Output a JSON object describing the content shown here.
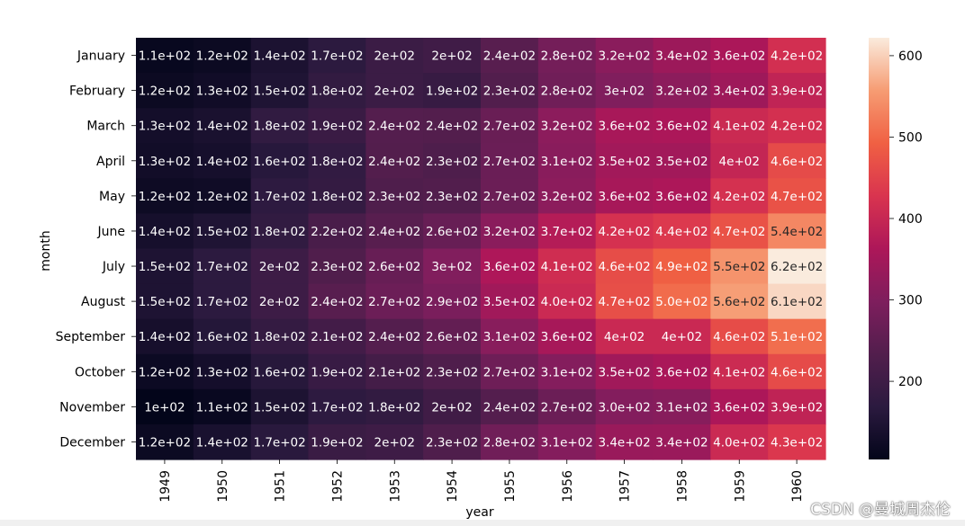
{
  "chart_data": {
    "type": "heatmap",
    "title": "",
    "xlabel": "year",
    "ylabel": "month",
    "x": [
      "1949",
      "1950",
      "1951",
      "1952",
      "1953",
      "1954",
      "1955",
      "1956",
      "1957",
      "1958",
      "1959",
      "1960"
    ],
    "y": [
      "January",
      "February",
      "March",
      "April",
      "May",
      "June",
      "July",
      "August",
      "September",
      "October",
      "November",
      "December"
    ],
    "values": [
      [
        112,
        118,
        145,
        171,
        196,
        204,
        242,
        284,
        315,
        340,
        360,
        417
      ],
      [
        118,
        126,
        150,
        180,
        196,
        188,
        233,
        277,
        301,
        318,
        342,
        391
      ],
      [
        132,
        141,
        178,
        193,
        236,
        235,
        267,
        317,
        356,
        362,
        406,
        419
      ],
      [
        129,
        135,
        163,
        181,
        235,
        227,
        269,
        313,
        348,
        348,
        396,
        461
      ],
      [
        121,
        125,
        172,
        183,
        229,
        234,
        270,
        318,
        355,
        363,
        420,
        472
      ],
      [
        135,
        149,
        178,
        218,
        243,
        264,
        315,
        374,
        422,
        435,
        472,
        535
      ],
      [
        148,
        170,
        199,
        230,
        264,
        302,
        364,
        413,
        465,
        491,
        548,
        622
      ],
      [
        148,
        170,
        199,
        242,
        272,
        293,
        347,
        405,
        467,
        505,
        559,
        606
      ],
      [
        136,
        158,
        184,
        209,
        237,
        259,
        312,
        355,
        404,
        404,
        463,
        508
      ],
      [
        119,
        133,
        162,
        191,
        211,
        229,
        274,
        306,
        347,
        359,
        407,
        461
      ],
      [
        104,
        114,
        146,
        172,
        180,
        203,
        237,
        271,
        305,
        310,
        362,
        390
      ],
      [
        118,
        140,
        166,
        194,
        201,
        229,
        278,
        306,
        336,
        337,
        405,
        432
      ]
    ],
    "annotations": [
      [
        "1.1e+02",
        "1.2e+02",
        "1.4e+02",
        "1.7e+02",
        "2e+02",
        "2e+02",
        "2.4e+02",
        "2.8e+02",
        "3.2e+02",
        "3.4e+02",
        "3.6e+02",
        "4.2e+02"
      ],
      [
        "1.2e+02",
        "1.3e+02",
        "1.5e+02",
        "1.8e+02",
        "2e+02",
        "1.9e+02",
        "2.3e+02",
        "2.8e+02",
        "3e+02",
        "3.2e+02",
        "3.4e+02",
        "3.9e+02"
      ],
      [
        "1.3e+02",
        "1.4e+02",
        "1.8e+02",
        "1.9e+02",
        "2.4e+02",
        "2.4e+02",
        "2.7e+02",
        "3.2e+02",
        "3.6e+02",
        "3.6e+02",
        "4.1e+02",
        "4.2e+02"
      ],
      [
        "1.3e+02",
        "1.4e+02",
        "1.6e+02",
        "1.8e+02",
        "2.4e+02",
        "2.3e+02",
        "2.7e+02",
        "3.1e+02",
        "3.5e+02",
        "3.5e+02",
        "4e+02",
        "4.6e+02"
      ],
      [
        "1.2e+02",
        "1.2e+02",
        "1.7e+02",
        "1.8e+02",
        "2.3e+02",
        "2.3e+02",
        "2.7e+02",
        "3.2e+02",
        "3.6e+02",
        "3.6e+02",
        "4.2e+02",
        "4.7e+02"
      ],
      [
        "1.4e+02",
        "1.5e+02",
        "1.8e+02",
        "2.2e+02",
        "2.4e+02",
        "2.6e+02",
        "3.2e+02",
        "3.7e+02",
        "4.2e+02",
        "4.4e+02",
        "4.7e+02",
        "5.4e+02"
      ],
      [
        "1.5e+02",
        "1.7e+02",
        "2e+02",
        "2.3e+02",
        "2.6e+02",
        "3e+02",
        "3.6e+02",
        "4.1e+02",
        "4.6e+02",
        "4.9e+02",
        "5.5e+02",
        "6.2e+02"
      ],
      [
        "1.5e+02",
        "1.7e+02",
        "2e+02",
        "2.4e+02",
        "2.7e+02",
        "2.9e+02",
        "3.5e+02",
        "4.0e+02",
        "4.7e+02",
        "5.0e+02",
        "5.6e+02",
        "6.1e+02"
      ],
      [
        "1.4e+02",
        "1.6e+02",
        "1.8e+02",
        "2.1e+02",
        "2.4e+02",
        "2.6e+02",
        "3.1e+02",
        "3.6e+02",
        "4e+02",
        "4e+02",
        "4.6e+02",
        "5.1e+02"
      ],
      [
        "1.2e+02",
        "1.3e+02",
        "1.6e+02",
        "1.9e+02",
        "2.1e+02",
        "2.3e+02",
        "2.7e+02",
        "3.1e+02",
        "3.5e+02",
        "3.6e+02",
        "4.1e+02",
        "4.6e+02"
      ],
      [
        "1e+02",
        "1.1e+02",
        "1.5e+02",
        "1.7e+02",
        "1.8e+02",
        "2e+02",
        "2.4e+02",
        "2.7e+02",
        "3.0e+02",
        "3.1e+02",
        "3.6e+02",
        "3.9e+02"
      ],
      [
        "1.2e+02",
        "1.4e+02",
        "1.7e+02",
        "1.9e+02",
        "2e+02",
        "2.3e+02",
        "2.8e+02",
        "3.1e+02",
        "3.4e+02",
        "3.4e+02",
        "4.0e+02",
        "4.3e+02"
      ]
    ],
    "colorscale": "rocket",
    "vmin": 104,
    "vmax": 622,
    "colorbar_ticks": [
      200,
      300,
      400,
      500,
      600
    ],
    "grid": false
  },
  "watermark": "CSDN @曼城周杰伦"
}
